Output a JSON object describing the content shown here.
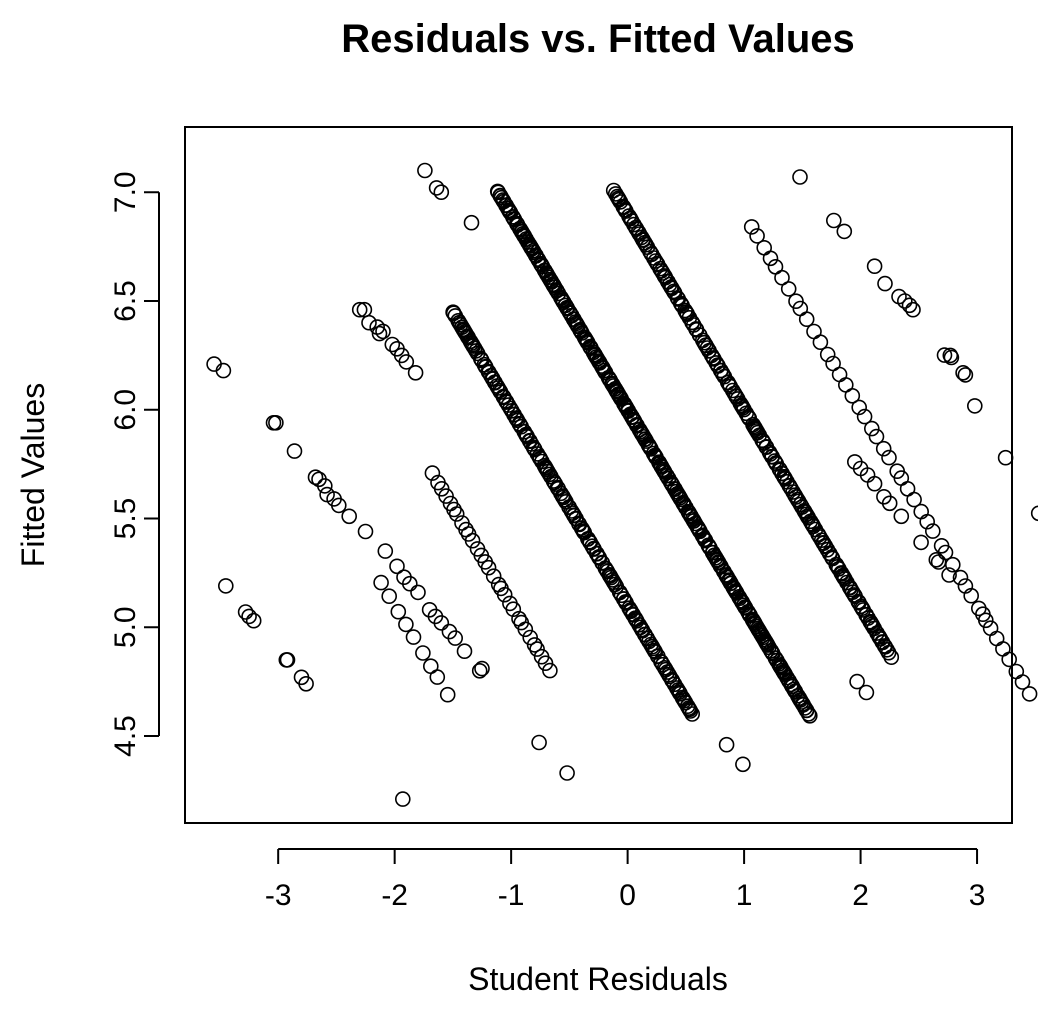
{
  "chart_data": {
    "type": "scatter",
    "title": "Residuals vs. Fitted Values",
    "xlabel": "Student Residuals",
    "ylabel": "Fitted Values",
    "xlim": [
      -3.8,
      3.3
    ],
    "ylim": [
      4.1,
      7.3
    ],
    "xticks": [
      -3,
      -2,
      -1,
      0,
      1,
      2,
      3
    ],
    "yticks": [
      4.5,
      5.0,
      5.5,
      6.0,
      6.5,
      7.0
    ],
    "ytick_labels": [
      "4.5",
      "5.0",
      "5.5",
      "6.0",
      "6.5",
      "7.0"
    ],
    "marker": "open-circle",
    "bands": [
      {
        "offset": -3.0,
        "from": 4.7,
        "to": 5.2,
        "points": 9
      },
      {
        "offset": -2.0,
        "from": 4.8,
        "to": 5.7,
        "points": 30
      },
      {
        "offset": -1.0,
        "from": 4.6,
        "to": 6.45,
        "points": 180
      },
      {
        "offset": 0.0,
        "from": 4.6,
        "to": 7.0,
        "points": 320
      },
      {
        "offset": 1.0,
        "from": 4.87,
        "to": 7.0,
        "points": 200
      },
      {
        "offset": 2.0,
        "from": 4.7,
        "to": 6.85,
        "points": 45
      },
      {
        "offset": 3.0,
        "from": 5.05,
        "to": 6.25,
        "points": 6
      }
    ],
    "points": [
      {
        "x": -3.55,
        "y": 6.21
      },
      {
        "x": -3.47,
        "y": 6.18
      },
      {
        "x": -3.04,
        "y": 5.94
      },
      {
        "x": -3.02,
        "y": 5.94
      },
      {
        "x": -2.86,
        "y": 5.81
      },
      {
        "x": -1.74,
        "y": 7.1
      },
      {
        "x": -1.64,
        "y": 7.02
      },
      {
        "x": -1.6,
        "y": 7.0
      },
      {
        "x": -1.34,
        "y": 6.86
      },
      {
        "x": -2.3,
        "y": 6.46
      },
      {
        "x": -2.26,
        "y": 6.46
      },
      {
        "x": -2.22,
        "y": 6.4
      },
      {
        "x": -2.15,
        "y": 6.38
      },
      {
        "x": -2.13,
        "y": 6.35
      },
      {
        "x": -2.1,
        "y": 6.36
      },
      {
        "x": -2.02,
        "y": 6.3
      },
      {
        "x": -1.98,
        "y": 6.28
      },
      {
        "x": -1.94,
        "y": 6.25
      },
      {
        "x": -1.9,
        "y": 6.22
      },
      {
        "x": -1.82,
        "y": 6.17
      },
      {
        "x": -3.45,
        "y": 5.19
      },
      {
        "x": -3.28,
        "y": 5.07
      },
      {
        "x": -3.25,
        "y": 5.05
      },
      {
        "x": -3.21,
        "y": 5.03
      },
      {
        "x": -2.93,
        "y": 4.85
      },
      {
        "x": -2.92,
        "y": 4.85
      },
      {
        "x": -2.8,
        "y": 4.77
      },
      {
        "x": -2.76,
        "y": 4.74
      },
      {
        "x": -0.76,
        "y": 4.47
      },
      {
        "x": -0.52,
        "y": 4.33
      },
      {
        "x": -1.93,
        "y": 4.21
      },
      {
        "x": 0.85,
        "y": 4.46
      },
      {
        "x": 0.99,
        "y": 4.37
      },
      {
        "x": 1.97,
        "y": 4.75
      },
      {
        "x": 2.05,
        "y": 4.7
      },
      {
        "x": 1.48,
        "y": 7.07
      },
      {
        "x": 1.77,
        "y": 6.87
      },
      {
        "x": 1.86,
        "y": 6.82
      },
      {
        "x": 2.12,
        "y": 6.66
      },
      {
        "x": 2.21,
        "y": 6.58
      },
      {
        "x": 2.33,
        "y": 6.52
      },
      {
        "x": 2.38,
        "y": 6.5
      },
      {
        "x": 2.42,
        "y": 6.48
      },
      {
        "x": 2.45,
        "y": 6.46
      },
      {
        "x": 2.77,
        "y": 6.25
      },
      {
        "x": 2.78,
        "y": 6.24
      },
      {
        "x": 2.88,
        "y": 6.17
      },
      {
        "x": 2.9,
        "y": 6.16
      },
      {
        "x": 2.52,
        "y": 5.39
      },
      {
        "x": 2.65,
        "y": 5.31
      },
      {
        "x": 2.67,
        "y": 5.3
      },
      {
        "x": 2.76,
        "y": 5.24
      },
      {
        "x": 3.05,
        "y": 5.06
      },
      {
        "x": 2.35,
        "y": 5.51
      },
      {
        "x": 2.25,
        "y": 5.57
      },
      {
        "x": 2.2,
        "y": 5.6
      },
      {
        "x": 2.12,
        "y": 5.66
      },
      {
        "x": 2.06,
        "y": 5.7
      },
      {
        "x": 2.0,
        "y": 5.73
      },
      {
        "x": 1.95,
        "y": 5.76
      },
      {
        "x": -1.27,
        "y": 4.8
      },
      {
        "x": -1.25,
        "y": 4.81
      },
      {
        "x": -1.4,
        "y": 4.89
      },
      {
        "x": -1.48,
        "y": 4.95
      },
      {
        "x": -1.53,
        "y": 4.98
      },
      {
        "x": -1.6,
        "y": 5.02
      },
      {
        "x": -1.65,
        "y": 5.05
      },
      {
        "x": -1.7,
        "y": 5.08
      },
      {
        "x": -1.8,
        "y": 5.16
      },
      {
        "x": -1.87,
        "y": 5.2
      },
      {
        "x": -1.92,
        "y": 5.23
      },
      {
        "x": -1.98,
        "y": 5.28
      },
      {
        "x": -2.08,
        "y": 5.35
      },
      {
        "x": -2.25,
        "y": 5.44
      },
      {
        "x": -2.39,
        "y": 5.51
      },
      {
        "x": -2.48,
        "y": 5.56
      },
      {
        "x": -2.52,
        "y": 5.59
      },
      {
        "x": -2.58,
        "y": 5.61
      },
      {
        "x": -2.6,
        "y": 5.65
      },
      {
        "x": -2.65,
        "y": 5.68
      },
      {
        "x": -2.68,
        "y": 5.69
      }
    ]
  }
}
